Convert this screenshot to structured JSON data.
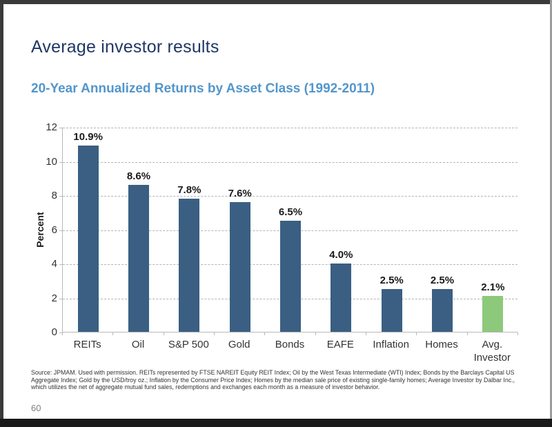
{
  "slide": {
    "title": "Average investor results",
    "subtitle": "20-Year Annualized Returns by Asset Class (1992-2011)",
    "source": "Source: JPMAM. Used with permission. REITs represented by FTSE NAREIT Equity REIT Index; Oil by the West Texas Intermediate (WTI) Index; Bonds by the Barclays Capital US Aggregate Index; Gold by the USD/troy oz.; Inflation by the Consumer Price Index; Homes by the median sale price of existing single-family homes; Average Investor by Dalbar Inc., which utilizes the net of aggregate mutual fund sales, redemptions and exchanges each month as a measure of investor behavior.",
    "page_number": "60"
  },
  "colors": {
    "title": "#1f3864",
    "subtitle": "#5396cb",
    "bar": "#3a5f82",
    "bar_highlight": "#8dc97b",
    "grid": "#b3b3b3",
    "axis": "#b8b8b8"
  },
  "chart_data": {
    "type": "bar",
    "title": "20-Year Annualized Returns by Asset Class (1992-2011)",
    "categories": [
      "REITs",
      "Oil",
      "S&P 500",
      "Gold",
      "Bonds",
      "EAFE",
      "Inflation",
      "Homes",
      "Avg. Investor"
    ],
    "values": [
      10.9,
      8.6,
      7.8,
      7.6,
      6.5,
      4.0,
      2.5,
      2.5,
      2.1
    ],
    "data_labels": [
      "10.9%",
      "8.6%",
      "7.8%",
      "7.6%",
      "6.5%",
      "4.0%",
      "2.5%",
      "2.5%",
      "2.1%"
    ],
    "highlight_index": 8,
    "xlabel": "",
    "ylabel": "Percent",
    "ylim": [
      0,
      12
    ],
    "ytick_step": 2,
    "grid": "horizontal dashed",
    "legend": "none"
  }
}
